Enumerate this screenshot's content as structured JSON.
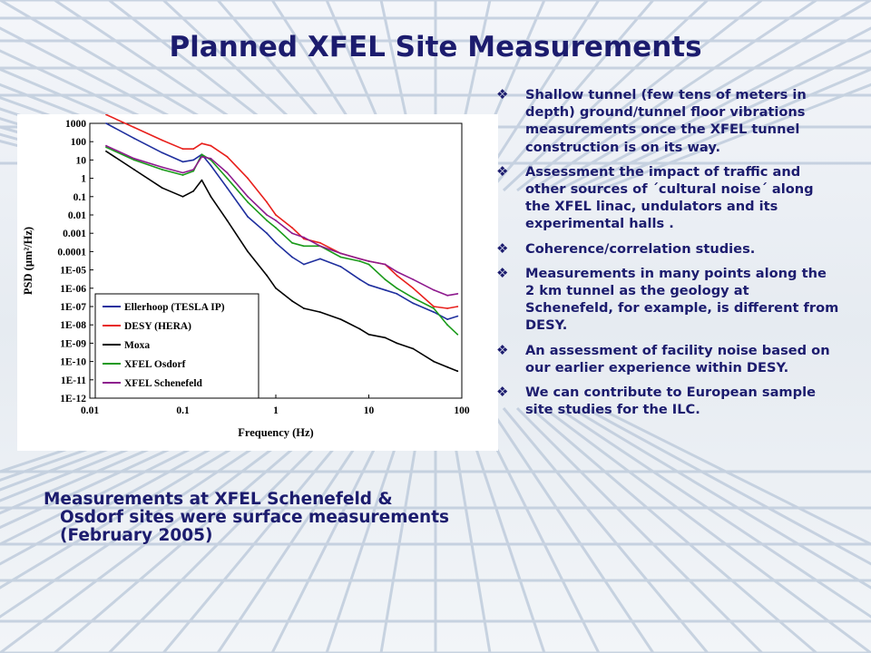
{
  "slide": {
    "title": "Planned XFEL Site Measurements",
    "caption": "Measurements at XFEL Schenefeld & Osdorf sites were surface measurements (February 2005)",
    "bullets": [
      "Shallow tunnel (few tens of meters in depth) ground/tunnel floor vibrations measurements once the XFEL tunnel construction  is on its way.",
      "Assessment the impact of traffic and other sources of ´cultural noise´ along the XFEL linac, undulators and its experimental halls .",
      "Coherence/correlation  studies.",
      "Measurements in many points along the 2 km tunnel as the geology at Schenefeld, for example, is different from DESY.",
      "An assessment of facility noise based on our earlier experience within DESY.",
      "We can contribute to European sample site studies for the ILC."
    ],
    "bullet_icon": "diamond-bullet-icon",
    "colors": {
      "text": "#1c1c6e",
      "background": "#eef2f6"
    }
  },
  "chart_data": {
    "type": "line",
    "title": "",
    "xlabel": "Frequency (Hz)",
    "ylabel": "PSD (µm²/Hz)",
    "x_scale": "log",
    "y_scale": "log",
    "xlim": [
      0.01,
      100
    ],
    "ylim": [
      1e-12,
      1000
    ],
    "x_ticks": [
      "0.01",
      "0.1",
      "1",
      "10",
      "100"
    ],
    "y_ticks": [
      "1E-12",
      "1E-11",
      "1E-10",
      "1E-09",
      "1E-08",
      "1E-07",
      "1E-06",
      "1E-05",
      "0.0001",
      "0.001",
      "0.01",
      "0.1",
      "1",
      "10",
      "100",
      "1000"
    ],
    "grid": false,
    "legend_position": "bottom-left",
    "series": [
      {
        "name": "Ellerhoop (TESLA IP)",
        "color": "#1f2f9e",
        "x": [
          0.015,
          0.03,
          0.06,
          0.1,
          0.13,
          0.16,
          0.2,
          0.3,
          0.5,
          0.8,
          1,
          1.5,
          2,
          3,
          5,
          8,
          10,
          15,
          20,
          30,
          50,
          70,
          90
        ],
        "y": [
          1000,
          150,
          25,
          8,
          10,
          20,
          5,
          0.3,
          0.008,
          0.001,
          0.0003,
          5e-05,
          2e-05,
          4e-05,
          1.5e-05,
          3e-06,
          1.5e-06,
          8e-07,
          5e-07,
          1.5e-07,
          5e-08,
          2e-08,
          3e-08
        ]
      },
      {
        "name": "DESY (HERA)",
        "color": "#e8201c",
        "x": [
          0.015,
          0.03,
          0.06,
          0.1,
          0.13,
          0.16,
          0.2,
          0.3,
          0.5,
          0.8,
          1,
          1.5,
          2,
          3,
          5,
          8,
          10,
          15,
          20,
          30,
          50,
          70,
          90
        ],
        "y": [
          3000,
          600,
          120,
          40,
          40,
          80,
          60,
          15,
          1,
          0.05,
          0.01,
          0.002,
          0.0005,
          0.0003,
          8e-05,
          4e-05,
          3e-05,
          2e-05,
          5e-06,
          1e-06,
          1e-07,
          8e-08,
          1e-07
        ]
      },
      {
        "name": "Moxa",
        "color": "#000000",
        "x": [
          0.015,
          0.03,
          0.06,
          0.1,
          0.13,
          0.16,
          0.2,
          0.3,
          0.5,
          0.8,
          1,
          1.5,
          2,
          3,
          5,
          8,
          10,
          15,
          20,
          30,
          50,
          70,
          90
        ],
        "y": [
          30,
          3,
          0.3,
          0.1,
          0.2,
          0.8,
          0.1,
          0.005,
          0.0001,
          5e-06,
          1e-06,
          2e-07,
          8e-08,
          5e-08,
          2e-08,
          6e-09,
          3e-09,
          2e-09,
          1e-09,
          5e-10,
          1e-10,
          5e-11,
          3e-11
        ]
      },
      {
        "name": "XFEL Osdorf",
        "color": "#1a9a1a",
        "x": [
          0.015,
          0.03,
          0.06,
          0.1,
          0.13,
          0.16,
          0.2,
          0.3,
          0.5,
          0.8,
          1,
          1.5,
          2,
          3,
          5,
          8,
          10,
          15,
          20,
          30,
          50,
          70,
          90
        ],
        "y": [
          50,
          10,
          3,
          1.5,
          2.5,
          20,
          10,
          1,
          0.05,
          0.005,
          0.002,
          0.0003,
          0.0002,
          0.0002,
          5e-05,
          3e-05,
          2e-05,
          3e-06,
          1e-06,
          3e-07,
          8e-08,
          1e-08,
          3e-09
        ]
      },
      {
        "name": "XFEL Schenefeld",
        "color": "#8e1a8e",
        "x": [
          0.015,
          0.03,
          0.06,
          0.1,
          0.13,
          0.16,
          0.2,
          0.3,
          0.5,
          0.8,
          1,
          1.5,
          2,
          3,
          5,
          8,
          10,
          15,
          20,
          30,
          50,
          70,
          90
        ],
        "y": [
          60,
          12,
          4,
          2,
          3,
          15,
          12,
          2,
          0.1,
          0.01,
          0.005,
          0.001,
          0.0006,
          0.0002,
          8e-05,
          4e-05,
          3e-05,
          2e-05,
          8e-06,
          3e-06,
          8e-07,
          4e-07,
          5e-07
        ]
      }
    ]
  }
}
